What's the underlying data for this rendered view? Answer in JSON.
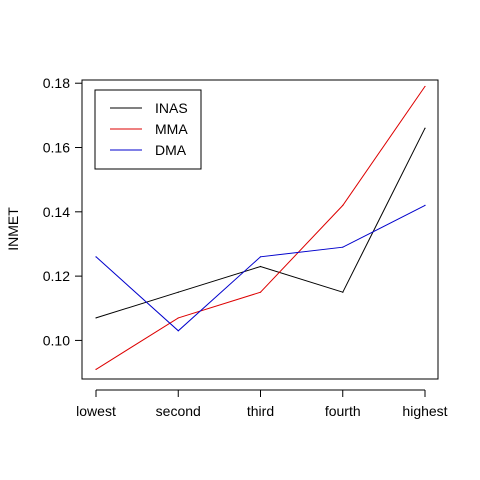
{
  "chart_data": {
    "type": "line",
    "title": "",
    "xlabel": "",
    "ylabel": "INMET",
    "categories": [
      "lowest",
      "second",
      "third",
      "fourth",
      "highest"
    ],
    "ylim": [
      0.088,
      0.181
    ],
    "yticks": [
      0.1,
      0.12,
      0.14,
      0.16,
      0.18
    ],
    "ytick_labels": [
      "0.10",
      "0.12",
      "0.14",
      "0.16",
      "0.18"
    ],
    "grid": false,
    "legend_position": "top-left",
    "series": [
      {
        "name": "INAS",
        "color": "#000000",
        "values": [
          0.107,
          0.115,
          0.123,
          0.115,
          0.166
        ]
      },
      {
        "name": "MMA",
        "color": "#dd0000",
        "values": [
          0.091,
          0.107,
          0.115,
          0.142,
          0.179
        ]
      },
      {
        "name": "DMA",
        "color": "#0000cc",
        "values": [
          0.126,
          0.103,
          0.126,
          0.129,
          0.142
        ]
      }
    ]
  }
}
